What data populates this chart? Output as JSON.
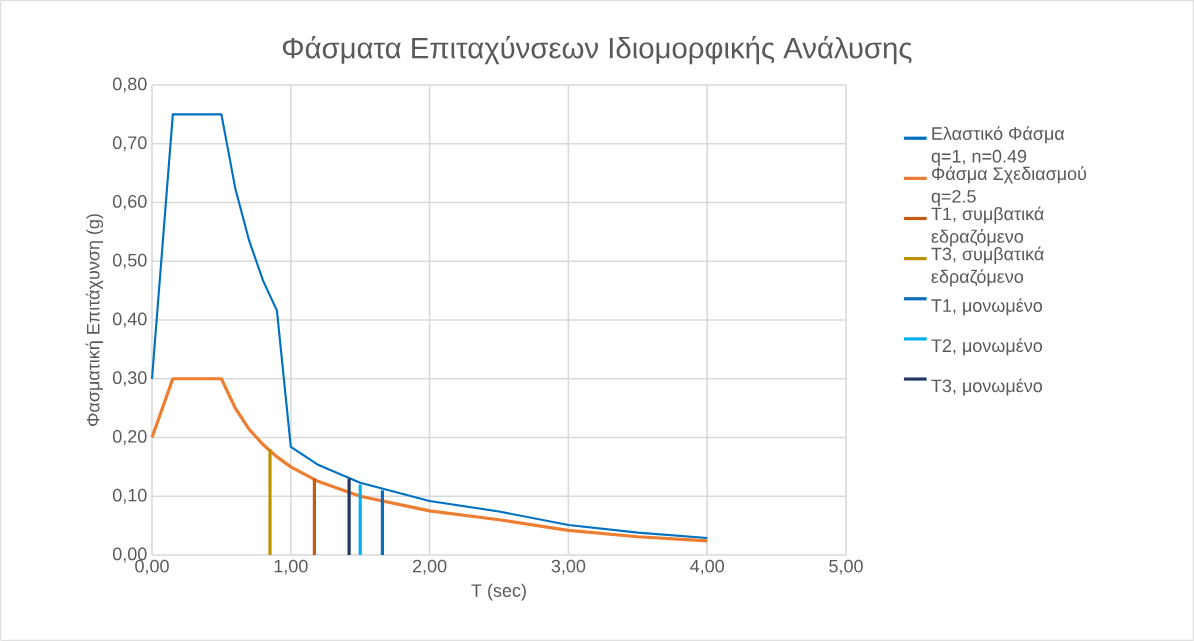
{
  "chart_data": {
    "type": "line",
    "title": "Φάσματα Επιταχύνσεων Ιδιομορφικής Ανάλυσης",
    "xlabel": "T (sec)",
    "ylabel": "Φασματική Επιτάχυνση (g)",
    "xlim": [
      0,
      5
    ],
    "ylim": [
      0,
      0.8
    ],
    "xticks": [
      {
        "value": 0,
        "label": "0,00"
      },
      {
        "value": 1,
        "label": "1,00"
      },
      {
        "value": 2,
        "label": "2,00"
      },
      {
        "value": 3,
        "label": "3,00"
      },
      {
        "value": 4,
        "label": "4,00"
      },
      {
        "value": 5,
        "label": "5,00"
      }
    ],
    "yticks": [
      {
        "value": 0,
        "label": "0,00"
      },
      {
        "value": 0.1,
        "label": "0,10"
      },
      {
        "value": 0.2,
        "label": "0,20"
      },
      {
        "value": 0.3,
        "label": "0,30"
      },
      {
        "value": 0.4,
        "label": "0,40"
      },
      {
        "value": 0.5,
        "label": "0,50"
      },
      {
        "value": 0.6,
        "label": "0,60"
      },
      {
        "value": 0.7,
        "label": "0,70"
      },
      {
        "value": 0.8,
        "label": "0,80"
      }
    ],
    "grid": true,
    "legend": "right",
    "x": [
      0,
      0.15,
      0.5,
      0.6,
      0.7,
      0.8,
      0.9,
      1.0,
      1.2,
      1.5,
      2.0,
      2.5,
      3.0,
      3.5,
      4.0
    ],
    "series": [
      {
        "name": "Ελαστικό Φάσμα q=1, n=0.49",
        "color": "#0070c0",
        "values": [
          0.3,
          0.75,
          0.75,
          0.624,
          0.535,
          0.467,
          0.416,
          0.184,
          0.153,
          0.123,
          0.092,
          0.074,
          0.051,
          0.038,
          0.029
        ]
      },
      {
        "name": "Φάσμα Σχεδιασμού q=2.5",
        "color": "#ed7d31",
        "values": [
          0.2,
          0.3,
          0.3,
          0.25,
          0.214,
          0.188,
          0.167,
          0.15,
          0.125,
          0.1,
          0.075,
          0.06,
          0.042,
          0.031,
          0.024
        ]
      },
      {
        "name": "T1, συμβατικά εδραζόμενο",
        "color": "#c55a11",
        "x": [
          1.17,
          1.17
        ],
        "values": [
          0,
          0.13
        ]
      },
      {
        "name": "T3, συμβατικά εδραζόμενο",
        "color": "#bf9000",
        "x": [
          0.85,
          0.85
        ],
        "values": [
          0,
          0.18
        ]
      },
      {
        "name": "T1, μονωμένο",
        "color": "#0a6ebd",
        "x": [
          1.66,
          1.66
        ],
        "values": [
          0,
          0.11
        ]
      },
      {
        "name": "T2, μονωμένο",
        "color": "#00b0f0",
        "x": [
          1.5,
          1.5
        ],
        "values": [
          0,
          0.12
        ]
      },
      {
        "name": "T3, μονωμένο",
        "color": "#203864",
        "x": [
          1.42,
          1.42
        ],
        "values": [
          0,
          0.13
        ]
      }
    ]
  }
}
